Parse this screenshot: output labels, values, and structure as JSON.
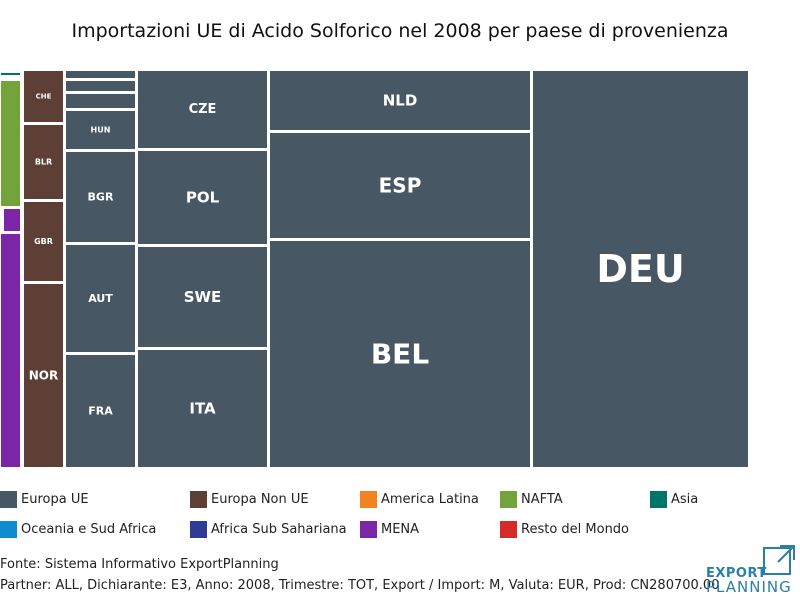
{
  "chart_data": {
    "type": "treemap",
    "title": "Importazioni UE di Acido Solforico nel 2008 per paese di provenienza",
    "colors": {
      "Europa UE": "#475763",
      "Europa Non UE": "#5d3f36",
      "America Latina": "#f58220",
      "NAFTA": "#73a43c",
      "Asia": "#007468",
      "Oceania e Sud Africa": "#0f8ccf",
      "Africa Sub Sahariana": "#2e3c96",
      "MENA": "#7a26a7",
      "Resto del Mondo": "#d42a2a"
    },
    "legend": [
      "Europa UE",
      "Europa Non UE",
      "America Latina",
      "NAFTA",
      "Asia",
      "Oceania e Sud Africa",
      "Africa Sub Sahariana",
      "MENA",
      "Resto del Mondo"
    ],
    "tiles": [
      {
        "label": "DEU",
        "group": "Europa UE",
        "value": 86580
      },
      {
        "label": "BEL",
        "group": "Europa UE",
        "value": 82260
      },
      {
        "label": "ESP",
        "group": "Europa UE",
        "value": 28440
      },
      {
        "label": "NLD",
        "group": "Europa UE",
        "value": 15840
      },
      {
        "label": "ITA",
        "group": "Europa UE",
        "value": 15120
      },
      {
        "label": "SWE",
        "group": "Europa UE",
        "value": 13680
      },
      {
        "label": "POL",
        "group": "Europa UE",
        "value": 12600
      },
      {
        "label": "CZE",
        "group": "Europa UE",
        "value": 10800
      },
      {
        "label": "FRA",
        "group": "Europa UE",
        "value": 8280
      },
      {
        "label": "AUT",
        "group": "Europa UE",
        "value": 7920
      },
      {
        "label": "BGR",
        "group": "Europa UE",
        "value": 6480
      },
      {
        "label": "HUN",
        "group": "Europa UE",
        "value": 2880
      },
      {
        "label": "",
        "group": "Europa UE",
        "value": 1080
      },
      {
        "label": "",
        "group": "Europa UE",
        "value": 720
      },
      {
        "label": "",
        "group": "Europa UE",
        "value": 720
      },
      {
        "label": "NOR",
        "group": "Europa Non UE",
        "value": 7560
      },
      {
        "label": "GBR",
        "group": "Europa Non UE",
        "value": 3240
      },
      {
        "label": "BLR",
        "group": "Europa Non UE",
        "value": 3060
      },
      {
        "label": "CHE",
        "group": "Europa Non UE",
        "value": 2160
      },
      {
        "label": "",
        "group": "MENA",
        "value": 4320
      },
      {
        "label": "",
        "group": "MENA",
        "value": 360
      },
      {
        "label": "",
        "group": "NAFTA",
        "value": 2520
      },
      {
        "label": "",
        "group": "Asia",
        "value": 180
      }
    ]
  },
  "footer": {
    "source": "Fonte: Sistema Informativo ExportPlanning",
    "params": "Partner: ALL, Dichiarante: E3, Anno: 2008, Trimestre: TOT, Export / Import: M, Valuta: EUR, Prod: CN280700.00"
  },
  "logo": {
    "line1": "EXPORT",
    "line2": "PLANNING"
  }
}
